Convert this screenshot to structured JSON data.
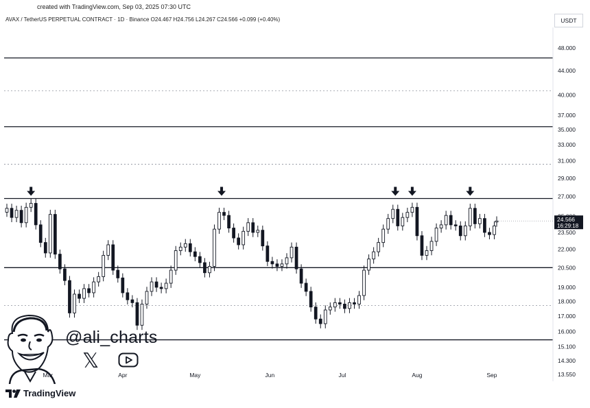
{
  "header": {
    "credit": "created with TradingView.com, Sep 03, 2025 07:30 UTC",
    "symbol_line": "AVAX / TetherUS PERPETUAL CONTRACT · 1D · Binance  O24.467  H24.756  L24.267  C24.566  +0.099 (+0.40%)",
    "currency": "USDT"
  },
  "watermark": {
    "handle": "@ali_charts",
    "icons": [
      "avatar-caricature",
      "x-logo",
      "youtube-logo"
    ]
  },
  "branding": {
    "name": "TradingView"
  },
  "colors": {
    "candle": "#131722",
    "line": "#131722",
    "background": "#ffffff",
    "price_badge": "#131722"
  },
  "chart_data": {
    "type": "candlestick",
    "symbol": "AVAX / TetherUS PERPETUAL CONTRACT",
    "interval": "1D",
    "exchange": "Binance",
    "last": {
      "open": 24.467,
      "high": 24.756,
      "low": 24.267,
      "close": 24.566,
      "change": "+0.099 (+0.40%)"
    },
    "y_axis": {
      "scale": "log",
      "range": [
        13.2,
        52
      ],
      "ticks": [
        "48.000",
        "44.000",
        "40.000",
        "37.000",
        "35.000",
        "33.000",
        "31.000",
        "29.000",
        "27.000",
        "25.000",
        "23.500",
        "22.000",
        "20.500",
        "19.000",
        "18.000",
        "17.000",
        "16.000",
        "15.100",
        "14.300",
        "13.550"
      ]
    },
    "x_axis": {
      "labels": [
        "Mar",
        "Apr",
        "May",
        "Jun",
        "Jul",
        "Aug",
        "Sep"
      ]
    },
    "current_price_label": "24.566",
    "countdown_label": "16:29:18",
    "horizontal_levels": [
      {
        "price": 46.2,
        "style": "solid"
      },
      {
        "price": 40.7,
        "style": "dotted"
      },
      {
        "price": 35.4,
        "style": "solid"
      },
      {
        "price": 30.6,
        "style": "dotted"
      },
      {
        "price": 26.8,
        "style": "solid"
      },
      {
        "price": 20.5,
        "style": "solid"
      },
      {
        "price": 17.7,
        "style": "dotted"
      },
      {
        "price": 15.5,
        "style": "solid"
      }
    ],
    "resistance_touch_arrows": [
      "2025-02-22",
      "2025-05-12",
      "2025-07-23",
      "2025-07-30",
      "2025-08-23"
    ],
    "closes": [
      {
        "d": "2025-02-12",
        "c": 25.8
      },
      {
        "d": "2025-02-14",
        "c": 24.9
      },
      {
        "d": "2025-02-16",
        "c": 25.6
      },
      {
        "d": "2025-02-18",
        "c": 24.4
      },
      {
        "d": "2025-02-20",
        "c": 25.9
      },
      {
        "d": "2025-02-22",
        "c": 26.3
      },
      {
        "d": "2025-02-24",
        "c": 24.2
      },
      {
        "d": "2025-02-26",
        "c": 22.6
      },
      {
        "d": "2025-02-28",
        "c": 21.7
      },
      {
        "d": "2025-03-02",
        "c": 25.2
      },
      {
        "d": "2025-03-04",
        "c": 21.6
      },
      {
        "d": "2025-03-06",
        "c": 20.4
      },
      {
        "d": "2025-03-08",
        "c": 19.5
      },
      {
        "d": "2025-03-10",
        "c": 17.2
      },
      {
        "d": "2025-03-12",
        "c": 18.5
      },
      {
        "d": "2025-03-14",
        "c": 18.2
      },
      {
        "d": "2025-03-16",
        "c": 18.9
      },
      {
        "d": "2025-03-18",
        "c": 18.6
      },
      {
        "d": "2025-03-20",
        "c": 19.4
      },
      {
        "d": "2025-03-22",
        "c": 19.8
      },
      {
        "d": "2025-03-24",
        "c": 21.5
      },
      {
        "d": "2025-03-26",
        "c": 22.4
      },
      {
        "d": "2025-03-28",
        "c": 20.3
      },
      {
        "d": "2025-03-30",
        "c": 19.7
      },
      {
        "d": "2025-04-01",
        "c": 18.6
      },
      {
        "d": "2025-04-03",
        "c": 18.1
      },
      {
        "d": "2025-04-05",
        "c": 17.9
      },
      {
        "d": "2025-04-07",
        "c": 16.4
      },
      {
        "d": "2025-04-09",
        "c": 17.8
      },
      {
        "d": "2025-04-11",
        "c": 18.7
      },
      {
        "d": "2025-04-13",
        "c": 19.4
      },
      {
        "d": "2025-04-15",
        "c": 19.0
      },
      {
        "d": "2025-04-17",
        "c": 18.9
      },
      {
        "d": "2025-04-19",
        "c": 19.3
      },
      {
        "d": "2025-04-21",
        "c": 20.3
      },
      {
        "d": "2025-04-23",
        "c": 21.9
      },
      {
        "d": "2025-04-25",
        "c": 22.2
      },
      {
        "d": "2025-04-27",
        "c": 22.5
      },
      {
        "d": "2025-04-29",
        "c": 21.8
      },
      {
        "d": "2025-05-01",
        "c": 21.4
      },
      {
        "d": "2025-05-03",
        "c": 20.9
      },
      {
        "d": "2025-05-05",
        "c": 20.1
      },
      {
        "d": "2025-05-07",
        "c": 20.6
      },
      {
        "d": "2025-05-09",
        "c": 23.8
      },
      {
        "d": "2025-05-11",
        "c": 25.4
      },
      {
        "d": "2025-05-13",
        "c": 25.1
      },
      {
        "d": "2025-05-15",
        "c": 23.9
      },
      {
        "d": "2025-05-17",
        "c": 23.0
      },
      {
        "d": "2025-05-19",
        "c": 22.4
      },
      {
        "d": "2025-05-21",
        "c": 23.6
      },
      {
        "d": "2025-05-23",
        "c": 24.4
      },
      {
        "d": "2025-05-25",
        "c": 23.5
      },
      {
        "d": "2025-05-27",
        "c": 23.7
      },
      {
        "d": "2025-05-29",
        "c": 22.3
      },
      {
        "d": "2025-05-31",
        "c": 21.0
      },
      {
        "d": "2025-06-02",
        "c": 20.8
      },
      {
        "d": "2025-06-04",
        "c": 20.6
      },
      {
        "d": "2025-06-06",
        "c": 20.8
      },
      {
        "d": "2025-06-08",
        "c": 21.3
      },
      {
        "d": "2025-06-10",
        "c": 22.2
      },
      {
        "d": "2025-06-12",
        "c": 20.4
      },
      {
        "d": "2025-06-14",
        "c": 19.3
      },
      {
        "d": "2025-06-16",
        "c": 18.7
      },
      {
        "d": "2025-06-18",
        "c": 17.6
      },
      {
        "d": "2025-06-20",
        "c": 16.8
      },
      {
        "d": "2025-06-22",
        "c": 16.5
      },
      {
        "d": "2025-06-24",
        "c": 17.4
      },
      {
        "d": "2025-06-26",
        "c": 17.6
      },
      {
        "d": "2025-06-28",
        "c": 17.9
      },
      {
        "d": "2025-06-30",
        "c": 17.8
      },
      {
        "d": "2025-07-02",
        "c": 17.5
      },
      {
        "d": "2025-07-04",
        "c": 17.9
      },
      {
        "d": "2025-07-06",
        "c": 17.8
      },
      {
        "d": "2025-07-08",
        "c": 18.4
      },
      {
        "d": "2025-07-10",
        "c": 20.3
      },
      {
        "d": "2025-07-12",
        "c": 21.2
      },
      {
        "d": "2025-07-14",
        "c": 21.8
      },
      {
        "d": "2025-07-16",
        "c": 22.6
      },
      {
        "d": "2025-07-18",
        "c": 23.8
      },
      {
        "d": "2025-07-20",
        "c": 24.8
      },
      {
        "d": "2025-07-22",
        "c": 25.7
      },
      {
        "d": "2025-07-24",
        "c": 24.1
      },
      {
        "d": "2025-07-26",
        "c": 24.9
      },
      {
        "d": "2025-07-28",
        "c": 25.4
      },
      {
        "d": "2025-07-30",
        "c": 25.9
      },
      {
        "d": "2025-08-01",
        "c": 23.2
      },
      {
        "d": "2025-08-03",
        "c": 21.5
      },
      {
        "d": "2025-08-05",
        "c": 21.9
      },
      {
        "d": "2025-08-07",
        "c": 22.7
      },
      {
        "d": "2025-08-09",
        "c": 23.9
      },
      {
        "d": "2025-08-11",
        "c": 24.2
      },
      {
        "d": "2025-08-13",
        "c": 25.1
      },
      {
        "d": "2025-08-15",
        "c": 24.2
      },
      {
        "d": "2025-08-17",
        "c": 24.1
      },
      {
        "d": "2025-08-19",
        "c": 23.2
      },
      {
        "d": "2025-08-21",
        "c": 24.1
      },
      {
        "d": "2025-08-23",
        "c": 25.8
      },
      {
        "d": "2025-08-25",
        "c": 24.3
      },
      {
        "d": "2025-08-27",
        "c": 24.8
      },
      {
        "d": "2025-08-29",
        "c": 23.5
      },
      {
        "d": "2025-08-31",
        "c": 23.3
      },
      {
        "d": "2025-09-02",
        "c": 24.1
      },
      {
        "d": "2025-09-03",
        "c": 24.566
      }
    ]
  }
}
